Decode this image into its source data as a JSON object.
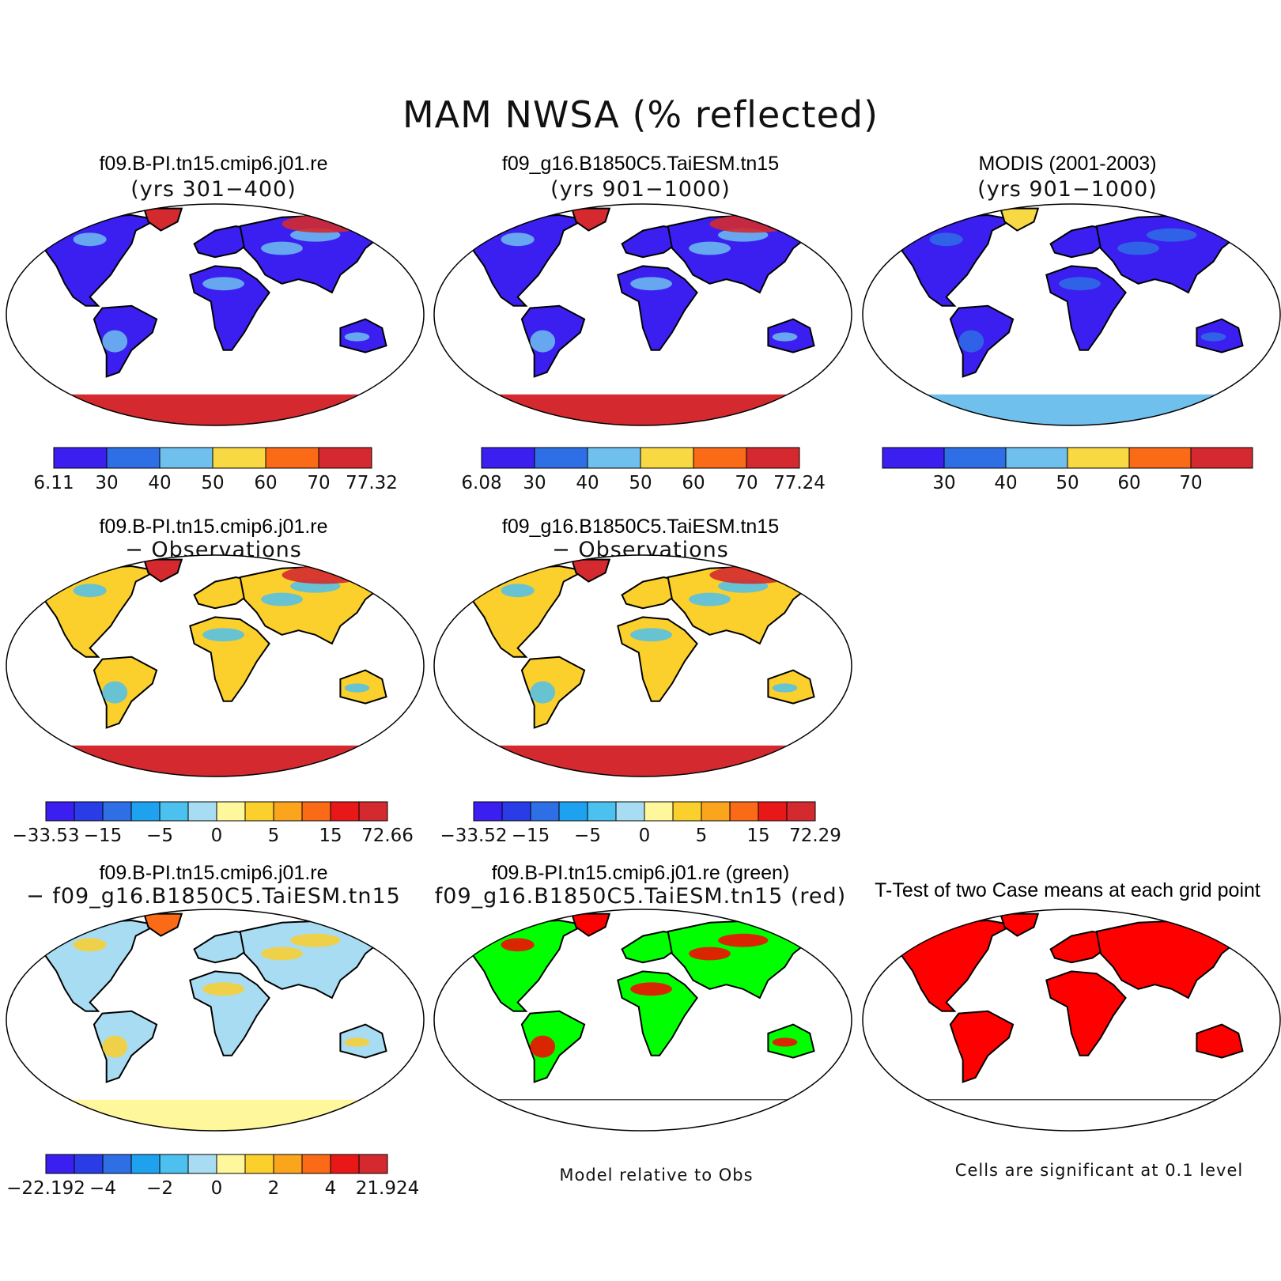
{
  "title": "MAM NWSA (% reflected)",
  "colors": {
    "row1": [
      "#3b1ff0",
      "#2f6fe6",
      "#70c0ee",
      "#f8d944",
      "#fb6a17",
      "#d42a2f"
    ],
    "diff": [
      "#3b1ff0",
      "#2a3ce6",
      "#2f6fe6",
      "#1ea2f0",
      "#4cc0ee",
      "#a7dcf2",
      "#fff79c",
      "#fbcf2c",
      "#fba51c",
      "#fb6a17",
      "#e81818",
      "#d42a2f"
    ],
    "green": "#00ff00",
    "red": "#ff0000"
  },
  "panels": [
    {
      "id": "p1",
      "title": "f09.B-PI.tn15.cmip6.j01.re",
      "subtitle": "(yrs 301−400)"
    },
    {
      "id": "p2",
      "title": "f09_g16.B1850C5.TaiESM.tn15",
      "subtitle": "(yrs 901−1000)"
    },
    {
      "id": "p3",
      "title": "MODIS (2001-2003)",
      "subtitle": "(yrs 901−1000)"
    },
    {
      "id": "p4",
      "title": "f09.B-PI.tn15.cmip6.j01.re",
      "subtitle": "− Observations"
    },
    {
      "id": "p5",
      "title": "f09_g16.B1850C5.TaiESM.tn15",
      "subtitle": "− Observations"
    },
    {
      "id": "p7",
      "title": "f09.B-PI.tn15.cmip6.j01.re",
      "subtitle": "− f09_g16.B1850C5.TaiESM.tn15"
    },
    {
      "id": "p8",
      "title": "f09.B-PI.tn15.cmip6.j01.re (green)",
      "subtitle": "f09_g16.B1850C5.TaiESM.tn15 (red)"
    },
    {
      "id": "p9",
      "title": "T-Test of two Case means at each grid point",
      "subtitle": ""
    }
  ],
  "colorbars": [
    {
      "id": "cb1",
      "labels": [
        "6.11",
        "30",
        "40",
        "50",
        "60",
        "70",
        "77.32"
      ]
    },
    {
      "id": "cb2",
      "labels": [
        "6.08",
        "30",
        "40",
        "50",
        "60",
        "70",
        "77.24"
      ]
    },
    {
      "id": "cb3",
      "labels": [
        "30",
        "40",
        "50",
        "60",
        "70"
      ]
    },
    {
      "id": "cb4",
      "labels": [
        "−33.53",
        "−15",
        "−5",
        "0",
        "5",
        "15",
        "72.66"
      ]
    },
    {
      "id": "cb5",
      "labels": [
        "−33.52",
        "−15",
        "−5",
        "0",
        "5",
        "15",
        "72.29"
      ]
    },
    {
      "id": "cb7",
      "labels": [
        "−22.192",
        "−4",
        "−2",
        "0",
        "2",
        "4",
        "21.924"
      ]
    }
  ],
  "notes": {
    "model_rel": "Model relative to Obs",
    "signif": "Cells are significant at 0.1 level"
  }
}
